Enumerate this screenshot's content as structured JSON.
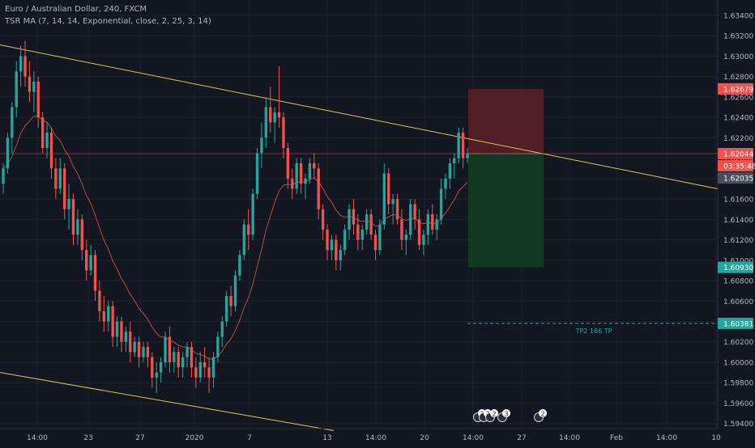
{
  "header": {
    "title": "Euro / Australian Dollar, 240, FXCM",
    "indicator": "TSR MA (7, 14, 14, Exponential, close, 2, 25, 3, 14)"
  },
  "colors": {
    "background": "#131722",
    "up": "#26a69a",
    "down": "#ef5350",
    "trendline": "#d6c85a",
    "ma": "#b24a4a",
    "stop_zone": "#5a1f27",
    "target_zone": "#113a22",
    "axis_text": "#b2b5be",
    "grid": "#1e222d"
  },
  "annotations": {
    "tp_label": "TP2 166 TP",
    "event_badges": [
      "2",
      "2",
      "2",
      "3",
      "2"
    ]
  },
  "chart_data": {
    "type": "candlestick",
    "title": "Euro / Australian Dollar, 240, FXCM",
    "ylim": [
      1.5935,
      1.6355
    ],
    "y_ticks": [
      "1.63400",
      "1.63200",
      "1.63000",
      "1.62800",
      "1.62600",
      "1.62400",
      "1.62200",
      "1.62000",
      "1.61800",
      "1.61600",
      "1.61400",
      "1.61200",
      "1.61000",
      "1.60800",
      "1.60600",
      "1.60400",
      "1.60200",
      "1.60000",
      "1.59800",
      "1.59600",
      "1.59400"
    ],
    "x_ticks": [
      "14:00",
      "23",
      "27",
      "2020",
      "7",
      "13",
      "14:00",
      "20",
      "14:00",
      "27",
      "14:00",
      "Feb",
      "14:00",
      "10"
    ],
    "price_labels": [
      {
        "value": "1.62679",
        "color": "#ef5350"
      },
      {
        "value": "1.62044",
        "color": "#ef5350"
      },
      {
        "value": "03:35:48",
        "color": "#ef5350"
      },
      {
        "value": "1.62035",
        "color": "#4a4e5a"
      },
      {
        "value": "1.60930",
        "color": "#26a69a"
      },
      {
        "value": "1.60381",
        "color": "#26a69a"
      }
    ],
    "risk_reward": {
      "stop": 1.62679,
      "entry": 1.62044,
      "target": 1.6093
    },
    "tp_level": 1.60381,
    "ohlc": [
      [
        1.6175,
        1.6195,
        1.6165,
        1.619
      ],
      [
        1.619,
        1.6225,
        1.6185,
        1.622
      ],
      [
        1.622,
        1.6255,
        1.6205,
        1.625
      ],
      [
        1.625,
        1.6295,
        1.624,
        1.6285
      ],
      [
        1.6285,
        1.631,
        1.627,
        1.63
      ],
      [
        1.63,
        1.6315,
        1.627,
        1.628
      ],
      [
        1.628,
        1.6295,
        1.6255,
        1.6265
      ],
      [
        1.6265,
        1.6285,
        1.6245,
        1.6275
      ],
      [
        1.6275,
        1.628,
        1.623,
        1.624
      ],
      [
        1.624,
        1.6245,
        1.6205,
        1.621
      ],
      [
        1.621,
        1.6235,
        1.62,
        1.6225
      ],
      [
        1.6225,
        1.623,
        1.618,
        1.619
      ],
      [
        1.619,
        1.62,
        1.616,
        1.617
      ],
      [
        1.617,
        1.62,
        1.6165,
        1.619
      ],
      [
        1.619,
        1.6195,
        1.614,
        1.615
      ],
      [
        1.615,
        1.6175,
        1.613,
        1.616
      ],
      [
        1.616,
        1.6165,
        1.6115,
        1.6125
      ],
      [
        1.6125,
        1.615,
        1.6115,
        1.614
      ],
      [
        1.614,
        1.6145,
        1.61,
        1.611
      ],
      [
        1.611,
        1.612,
        1.608,
        1.609
      ],
      [
        1.609,
        1.6115,
        1.6085,
        1.6105
      ],
      [
        1.6105,
        1.611,
        1.606,
        1.607
      ],
      [
        1.607,
        1.608,
        1.604,
        1.605
      ],
      [
        1.605,
        1.6065,
        1.603,
        1.604
      ],
      [
        1.604,
        1.606,
        1.603,
        1.6055
      ],
      [
        1.6055,
        1.606,
        1.6015,
        1.6025
      ],
      [
        1.6025,
        1.6045,
        1.6015,
        1.604
      ],
      [
        1.604,
        1.6045,
        1.601,
        1.602
      ],
      [
        1.602,
        1.6035,
        1.601,
        1.603
      ],
      [
        1.603,
        1.604,
        1.6,
        1.601
      ],
      [
        1.601,
        1.6025,
        1.6005,
        1.602
      ],
      [
        1.602,
        1.6025,
        1.5995,
        1.6005
      ],
      [
        1.6005,
        1.602,
        1.6,
        1.6015
      ],
      [
        1.6015,
        1.602,
        1.5995,
        1.6005
      ],
      [
        1.6005,
        1.601,
        1.5975,
        1.5985
      ],
      [
        1.5985,
        1.6,
        1.597,
        1.599
      ],
      [
        1.599,
        1.6005,
        1.598,
        1.6
      ],
      [
        1.6,
        1.603,
        1.5995,
        1.6025
      ],
      [
        1.6025,
        1.6035,
        1.599,
        1.6
      ],
      [
        1.6,
        1.6015,
        1.599,
        1.601
      ],
      [
        1.601,
        1.6015,
        1.5985,
        1.5995
      ],
      [
        1.5995,
        1.601,
        1.5985,
        1.6005
      ],
      [
        1.6005,
        1.602,
        1.5995,
        1.6015
      ],
      [
        1.6015,
        1.602,
        1.5985,
        1.5995
      ],
      [
        1.5995,
        1.6005,
        1.5975,
        1.5985
      ],
      [
        1.5985,
        1.601,
        1.598,
        1.6
      ],
      [
        1.6,
        1.6015,
        1.5985,
        1.5995
      ],
      [
        1.5995,
        1.6005,
        1.597,
        1.5985
      ],
      [
        1.5985,
        1.601,
        1.5975,
        1.6005
      ],
      [
        1.6005,
        1.603,
        1.6,
        1.6025
      ],
      [
        1.6025,
        1.6045,
        1.6015,
        1.604
      ],
      [
        1.604,
        1.607,
        1.6035,
        1.6065
      ],
      [
        1.6065,
        1.6075,
        1.6045,
        1.6055
      ],
      [
        1.6055,
        1.609,
        1.605,
        1.6085
      ],
      [
        1.6085,
        1.611,
        1.608,
        1.6105
      ],
      [
        1.6105,
        1.614,
        1.61,
        1.6135
      ],
      [
        1.6135,
        1.615,
        1.611,
        1.6125
      ],
      [
        1.6125,
        1.617,
        1.612,
        1.6165
      ],
      [
        1.6165,
        1.621,
        1.616,
        1.6205
      ],
      [
        1.6205,
        1.6235,
        1.619,
        1.622
      ],
      [
        1.622,
        1.626,
        1.621,
        1.625
      ],
      [
        1.625,
        1.627,
        1.6225,
        1.6235
      ],
      [
        1.6235,
        1.625,
        1.6215,
        1.6245
      ],
      [
        1.6245,
        1.629,
        1.623,
        1.624
      ],
      [
        1.624,
        1.6245,
        1.62,
        1.621
      ],
      [
        1.621,
        1.6215,
        1.617,
        1.618
      ],
      [
        1.618,
        1.619,
        1.616,
        1.617
      ],
      [
        1.617,
        1.62,
        1.6165,
        1.6195
      ],
      [
        1.6195,
        1.62,
        1.6165,
        1.6175
      ],
      [
        1.6175,
        1.6185,
        1.616,
        1.618
      ],
      [
        1.618,
        1.62,
        1.6175,
        1.6195
      ],
      [
        1.6195,
        1.6205,
        1.618,
        1.619
      ],
      [
        1.619,
        1.6195,
        1.614,
        1.615
      ],
      [
        1.615,
        1.6155,
        1.612,
        1.613
      ],
      [
        1.613,
        1.6135,
        1.61,
        1.611
      ],
      [
        1.611,
        1.6125,
        1.61,
        1.612
      ],
      [
        1.612,
        1.6125,
        1.609,
        1.61
      ],
      [
        1.61,
        1.6115,
        1.609,
        1.611
      ],
      [
        1.611,
        1.6135,
        1.6105,
        1.613
      ],
      [
        1.613,
        1.6155,
        1.612,
        1.615
      ],
      [
        1.615,
        1.616,
        1.6125,
        1.6135
      ],
      [
        1.6135,
        1.6145,
        1.611,
        1.612
      ],
      [
        1.612,
        1.6135,
        1.611,
        1.613
      ],
      [
        1.613,
        1.615,
        1.6125,
        1.6145
      ],
      [
        1.6145,
        1.615,
        1.612,
        1.6125
      ],
      [
        1.6125,
        1.613,
        1.61,
        1.611
      ],
      [
        1.611,
        1.614,
        1.6105,
        1.6135
      ],
      [
        1.6135,
        1.6195,
        1.613,
        1.6185
      ],
      [
        1.6185,
        1.619,
        1.6145,
        1.6155
      ],
      [
        1.6155,
        1.6165,
        1.6135,
        1.616
      ],
      [
        1.616,
        1.6165,
        1.6135,
        1.614
      ],
      [
        1.614,
        1.615,
        1.611,
        1.612
      ],
      [
        1.612,
        1.613,
        1.6105,
        1.6125
      ],
      [
        1.6125,
        1.616,
        1.612,
        1.6155
      ],
      [
        1.6155,
        1.616,
        1.613,
        1.614
      ],
      [
        1.614,
        1.615,
        1.611,
        1.6115
      ],
      [
        1.6115,
        1.613,
        1.6105,
        1.6125
      ],
      [
        1.6125,
        1.615,
        1.6115,
        1.6145
      ],
      [
        1.6145,
        1.6155,
        1.6125,
        1.613
      ],
      [
        1.613,
        1.6145,
        1.612,
        1.614
      ],
      [
        1.614,
        1.618,
        1.6135,
        1.617
      ],
      [
        1.617,
        1.6185,
        1.616,
        1.618
      ],
      [
        1.618,
        1.62,
        1.617,
        1.6195
      ],
      [
        1.6195,
        1.6205,
        1.618,
        1.62
      ],
      [
        1.62,
        1.623,
        1.6195,
        1.6225
      ],
      [
        1.6225,
        1.623,
        1.619,
        1.62
      ],
      [
        1.62,
        1.621,
        1.6195,
        1.6205
      ]
    ]
  }
}
